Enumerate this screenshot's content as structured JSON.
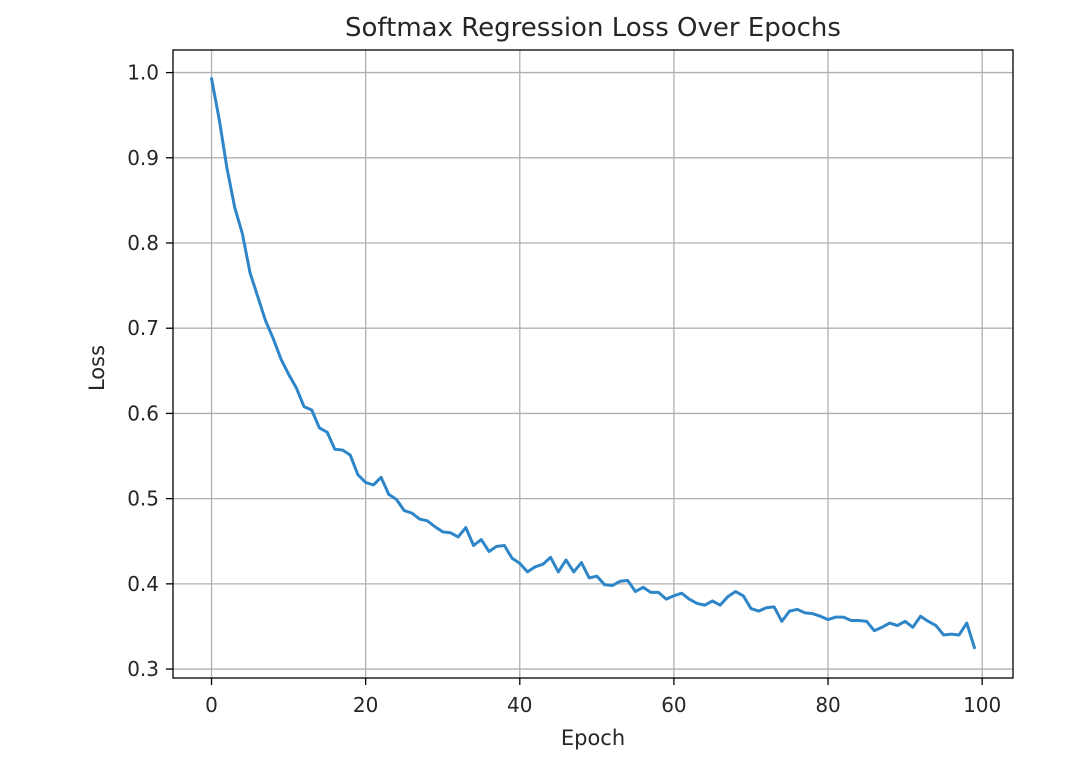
{
  "chart_data": {
    "type": "line",
    "title": "Softmax Regression Loss Over Epochs",
    "xlabel": "Epoch",
    "ylabel": "Loss",
    "xlim": [
      -5,
      104
    ],
    "ylim": [
      0.2895,
      1.0265
    ],
    "xticks": [
      0,
      20,
      40,
      60,
      80,
      100
    ],
    "yticks": [
      0.3,
      0.4,
      0.5,
      0.6,
      0.7,
      0.8,
      0.9,
      1.0
    ],
    "xtick_labels": [
      "0",
      "20",
      "40",
      "60",
      "80",
      "100"
    ],
    "ytick_labels": [
      "0.3",
      "0.4",
      "0.5",
      "0.6",
      "0.7",
      "0.8",
      "0.9",
      "1.0"
    ],
    "grid": true,
    "line_color": "#2e86c9",
    "series": [
      {
        "x": [
          0,
          1,
          2,
          3,
          4,
          5,
          6,
          7,
          8,
          9,
          10,
          11,
          12,
          13,
          14,
          15,
          16,
          17,
          18,
          19,
          20,
          21,
          22,
          23,
          24,
          25,
          26,
          27,
          28,
          29,
          30,
          31,
          32,
          33,
          34,
          35,
          36,
          37,
          38,
          39,
          40,
          41,
          42,
          43,
          44,
          45,
          46,
          47,
          48,
          49,
          50,
          51,
          52,
          53,
          54,
          55,
          56,
          57,
          58,
          59,
          60,
          61,
          62,
          63,
          64,
          65,
          66,
          67,
          68,
          69,
          70,
          71,
          72,
          73,
          74,
          75,
          76,
          77,
          78,
          79,
          80,
          81,
          82,
          83,
          84,
          85,
          86,
          87,
          88,
          89,
          90,
          91,
          92,
          93,
          94,
          95,
          96,
          97,
          98,
          99
        ],
        "values": [
          0.993,
          0.945,
          0.888,
          0.842,
          0.811,
          0.765,
          0.737,
          0.709,
          0.688,
          0.664,
          0.646,
          0.63,
          0.608,
          0.604,
          0.583,
          0.578,
          0.558,
          0.557,
          0.551,
          0.528,
          0.519,
          0.516,
          0.525,
          0.505,
          0.499,
          0.486,
          0.483,
          0.476,
          0.474,
          0.467,
          0.461,
          0.46,
          0.455,
          0.466,
          0.445,
          0.452,
          0.438,
          0.444,
          0.445,
          0.43,
          0.424,
          0.414,
          0.42,
          0.423,
          0.431,
          0.414,
          0.428,
          0.414,
          0.425,
          0.407,
          0.409,
          0.399,
          0.398,
          0.403,
          0.404,
          0.391,
          0.396,
          0.39,
          0.39,
          0.382,
          0.386,
          0.389,
          0.382,
          0.377,
          0.375,
          0.38,
          0.375,
          0.385,
          0.391,
          0.386,
          0.371,
          0.368,
          0.372,
          0.373,
          0.356,
          0.368,
          0.37,
          0.366,
          0.365,
          0.362,
          0.358,
          0.361,
          0.361,
          0.357,
          0.357,
          0.356,
          0.345,
          0.349,
          0.354,
          0.351,
          0.356,
          0.349,
          0.362,
          0.356,
          0.351,
          0.34,
          0.341,
          0.34,
          0.354,
          0.325
        ]
      }
    ]
  }
}
